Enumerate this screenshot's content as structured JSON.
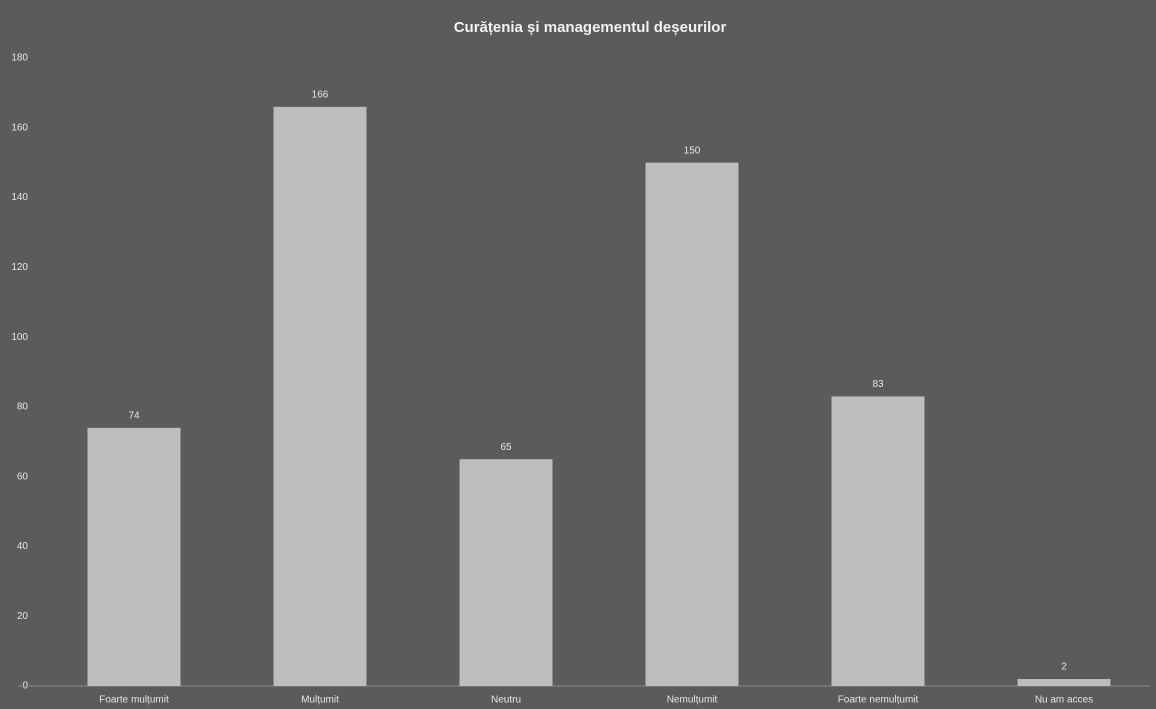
{
  "chart_data": {
    "type": "bar",
    "title": "Curățenia și managementul deșeurilor",
    "categories": [
      "Foarte mulțumit",
      "Mulțumit",
      "Neutru",
      "Nemulțumit",
      "Foarte nemulțumit",
      "Nu am acces"
    ],
    "values": [
      74,
      166,
      65,
      150,
      83,
      2
    ],
    "color": "#bdbdbd",
    "ylim": [
      0,
      180
    ],
    "yticks": [
      0,
      20,
      40,
      60,
      80,
      100,
      120,
      140,
      160,
      180
    ],
    "grid": false
  }
}
